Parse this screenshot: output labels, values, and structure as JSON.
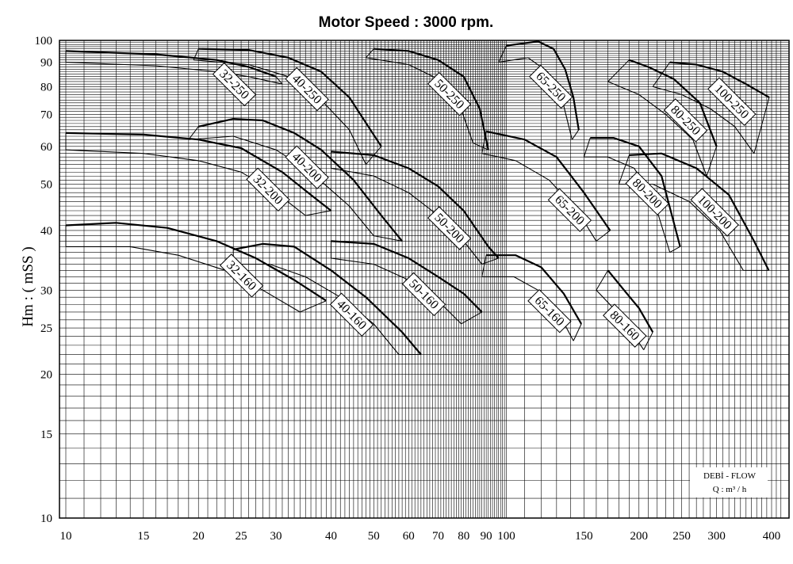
{
  "chart_data": {
    "type": "line",
    "title": "Motor Speed : 3000 rpm.",
    "ylabel": "Hm : ( mSS )",
    "x_scale": "log",
    "y_scale": "log",
    "xlim": [
      10,
      420
    ],
    "ylim": [
      10,
      100
    ],
    "grid": true,
    "x_ticks": [
      10,
      15,
      20,
      25,
      30,
      40,
      50,
      60,
      70,
      80,
      90,
      100,
      150,
      200,
      250,
      300,
      400
    ],
    "y_ticks": [
      10,
      15,
      20,
      25,
      30,
      40,
      50,
      60,
      70,
      80,
      90,
      100
    ],
    "flow_legend": {
      "line1": "DEBİ - FLOW",
      "line2": "Q : m³ / h"
    },
    "series": [
      {
        "name": "32-250",
        "max_dia": [
          [
            10,
            95
          ],
          [
            16,
            93.5
          ],
          [
            22,
            91
          ],
          [
            26,
            88
          ],
          [
            30,
            84
          ]
        ],
        "min_dia": [
          [
            10,
            90
          ],
          [
            16,
            88.5
          ],
          [
            22,
            86
          ],
          [
            26,
            84
          ],
          [
            31,
            81
          ]
        ]
      },
      {
        "name": "40-250",
        "max_dia": [
          [
            20,
            96
          ],
          [
            26,
            95.5
          ],
          [
            32,
            92
          ],
          [
            38,
            86
          ],
          [
            44,
            76
          ],
          [
            52,
            60
          ]
        ],
        "min_dia": [
          [
            19.5,
            91
          ],
          [
            26,
            89
          ],
          [
            32,
            84
          ],
          [
            38,
            75
          ],
          [
            44,
            65
          ],
          [
            48,
            55
          ]
        ]
      },
      {
        "name": "50-250",
        "max_dia": [
          [
            50,
            96
          ],
          [
            60,
            95
          ],
          [
            70,
            91
          ],
          [
            80,
            84
          ],
          [
            87,
            72
          ],
          [
            91,
            59
          ]
        ],
        "min_dia": [
          [
            48,
            92
          ],
          [
            60,
            89
          ],
          [
            70,
            83
          ],
          [
            78,
            74
          ],
          [
            84,
            61
          ]
        ]
      },
      {
        "name": "65-250",
        "max_dia": [
          [
            100,
            97.5
          ],
          [
            118,
            99.5
          ],
          [
            128,
            96
          ],
          [
            136,
            87
          ],
          [
            142,
            76
          ],
          [
            146,
            65
          ]
        ],
        "min_dia": [
          [
            96,
            90
          ],
          [
            112,
            92
          ],
          [
            124,
            86
          ],
          [
            134,
            75
          ],
          [
            141,
            62
          ]
        ]
      },
      {
        "name": "80-250",
        "max_dia": [
          [
            190,
            91
          ],
          [
            210,
            88
          ],
          [
            240,
            83
          ],
          [
            275,
            74
          ],
          [
            300,
            60
          ]
        ],
        "min_dia": [
          [
            170,
            82
          ],
          [
            200,
            77
          ],
          [
            230,
            70
          ],
          [
            265,
            62
          ],
          [
            285,
            52
          ]
        ]
      },
      {
        "name": "100-250",
        "max_dia": [
          [
            235,
            90
          ],
          [
            270,
            89
          ],
          [
            310,
            86
          ],
          [
            350,
            81
          ],
          [
            395,
            76
          ]
        ],
        "min_dia": [
          [
            215,
            80
          ],
          [
            250,
            77
          ],
          [
            290,
            72
          ],
          [
            330,
            66
          ],
          [
            365,
            58
          ]
        ]
      },
      {
        "name": "32-200",
        "max_dia": [
          [
            10,
            64
          ],
          [
            15,
            63.5
          ],
          [
            20,
            62
          ],
          [
            25,
            59.5
          ],
          [
            31,
            53
          ],
          [
            36,
            47.5
          ],
          [
            40,
            44
          ]
        ],
        "min_dia": [
          [
            10,
            59
          ],
          [
            15,
            58
          ],
          [
            20,
            56
          ],
          [
            25,
            53
          ],
          [
            30,
            48
          ],
          [
            35,
            43
          ]
        ]
      },
      {
        "name": "40-200",
        "max_dia": [
          [
            20,
            66
          ],
          [
            24,
            68.5
          ],
          [
            28,
            68
          ],
          [
            33,
            64
          ],
          [
            38,
            59
          ],
          [
            45,
            51
          ],
          [
            52,
            43
          ],
          [
            58,
            38
          ]
        ],
        "min_dia": [
          [
            19,
            62
          ],
          [
            24,
            63
          ],
          [
            30,
            59
          ],
          [
            36,
            53
          ],
          [
            44,
            45
          ],
          [
            50,
            39
          ]
        ]
      },
      {
        "name": "50-200",
        "max_dia": [
          [
            40,
            58.5
          ],
          [
            50,
            57.5
          ],
          [
            60,
            54
          ],
          [
            70,
            49.5
          ],
          [
            80,
            44
          ],
          [
            91,
            37
          ],
          [
            96,
            35
          ]
        ],
        "min_dia": [
          [
            40,
            54
          ],
          [
            50,
            52
          ],
          [
            60,
            48
          ],
          [
            70,
            43
          ],
          [
            80,
            38
          ],
          [
            88,
            34
          ]
        ]
      },
      {
        "name": "65-200",
        "max_dia": [
          [
            90,
            64.5
          ],
          [
            110,
            62
          ],
          [
            130,
            57
          ],
          [
            150,
            48
          ],
          [
            172,
            40
          ]
        ],
        "min_dia": [
          [
            88,
            58
          ],
          [
            105,
            56
          ],
          [
            125,
            51
          ],
          [
            145,
            44
          ],
          [
            160,
            38
          ]
        ]
      },
      {
        "name": "80-200",
        "max_dia": [
          [
            155,
            62.5
          ],
          [
            175,
            62.5
          ],
          [
            200,
            60
          ],
          [
            225,
            52
          ],
          [
            248,
            37
          ]
        ],
        "min_dia": [
          [
            150,
            57
          ],
          [
            170,
            57
          ],
          [
            195,
            54
          ],
          [
            215,
            47
          ],
          [
            235,
            36
          ]
        ]
      },
      {
        "name": "100-200",
        "max_dia": [
          [
            190,
            57.5
          ],
          [
            225,
            58
          ],
          [
            270,
            54
          ],
          [
            320,
            47.5
          ],
          [
            365,
            38
          ],
          [
            394,
            33
          ]
        ],
        "min_dia": [
          [
            180,
            50
          ],
          [
            215,
            50
          ],
          [
            260,
            46
          ],
          [
            305,
            40
          ],
          [
            345,
            33
          ]
        ]
      },
      {
        "name": "32-160",
        "max_dia": [
          [
            10,
            41
          ],
          [
            13,
            41.5
          ],
          [
            17,
            40.5
          ],
          [
            22,
            38
          ],
          [
            27,
            35
          ],
          [
            33,
            31.5
          ],
          [
            39,
            28.5
          ]
        ],
        "min_dia": [
          [
            10,
            37
          ],
          [
            14,
            37
          ],
          [
            18,
            35.5
          ],
          [
            23,
            33
          ],
          [
            28,
            30
          ],
          [
            34,
            27
          ]
        ]
      },
      {
        "name": "40-160",
        "max_dia": [
          [
            24,
            36.5
          ],
          [
            28,
            37.5
          ],
          [
            33,
            37
          ],
          [
            40,
            33
          ],
          [
            48,
            29
          ],
          [
            58,
            24.5
          ],
          [
            64,
            22
          ]
        ],
        "min_dia": [
          [
            24,
            34
          ],
          [
            29,
            34
          ],
          [
            35,
            32
          ],
          [
            42,
            29
          ],
          [
            50,
            25.5
          ],
          [
            57,
            22
          ]
        ]
      },
      {
        "name": "50-160",
        "max_dia": [
          [
            40,
            38
          ],
          [
            50,
            37.5
          ],
          [
            60,
            35
          ],
          [
            70,
            32
          ],
          [
            80,
            29.5
          ],
          [
            88,
            27
          ]
        ],
        "min_dia": [
          [
            40,
            35
          ],
          [
            50,
            34
          ],
          [
            60,
            31.5
          ],
          [
            70,
            28.5
          ],
          [
            79,
            25.5
          ]
        ]
      },
      {
        "name": "65-160",
        "max_dia": [
          [
            90,
            35.5
          ],
          [
            105,
            35.5
          ],
          [
            120,
            33.5
          ],
          [
            135,
            29.5
          ],
          [
            148,
            25.5
          ]
        ],
        "min_dia": [
          [
            88,
            32
          ],
          [
            104,
            32
          ],
          [
            118,
            30
          ],
          [
            131,
            27
          ],
          [
            142,
            23.5
          ]
        ]
      },
      {
        "name": "80-160",
        "max_dia": [
          [
            170,
            33
          ],
          [
            185,
            30
          ],
          [
            200,
            27.5
          ],
          [
            215,
            24.5
          ]
        ],
        "min_dia": [
          [
            160,
            30
          ],
          [
            175,
            27.5
          ],
          [
            190,
            25
          ],
          [
            205,
            22.5
          ]
        ]
      }
    ]
  }
}
